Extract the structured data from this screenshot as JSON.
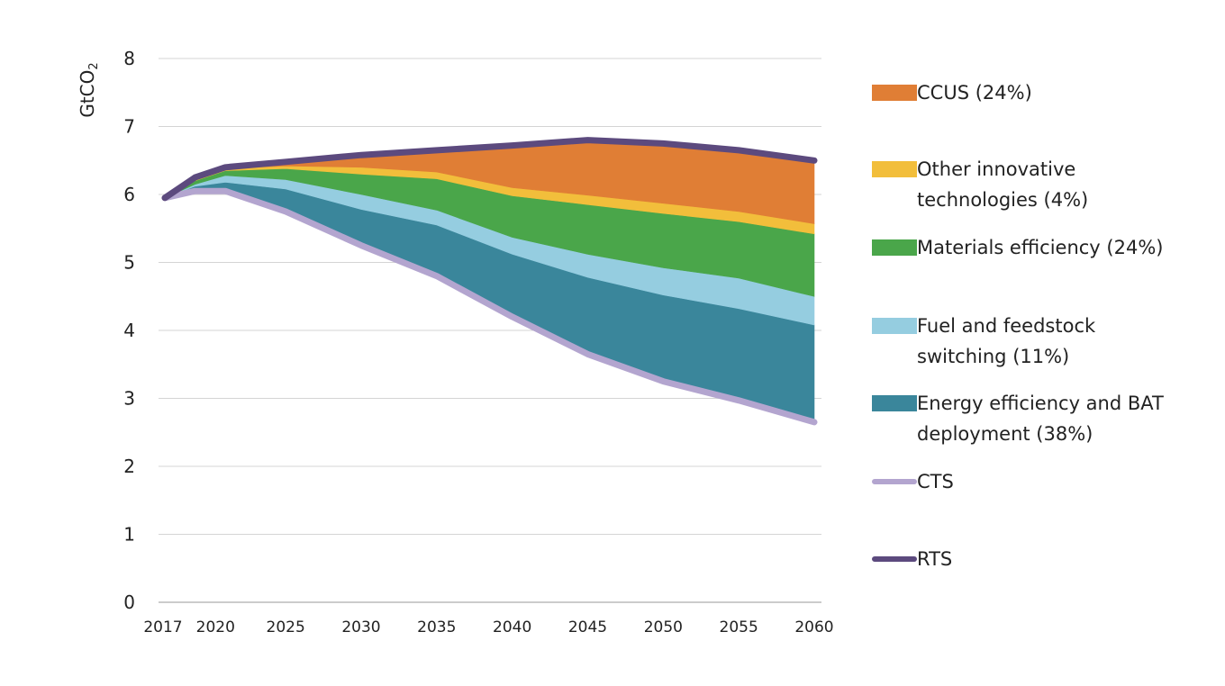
{
  "chart_data": {
    "type": "area",
    "ylabel_main": "GtCO",
    "ylabel_sub": "2",
    "ylim": [
      0,
      8
    ],
    "yticks": [
      "0",
      "1",
      "2",
      "3",
      "4",
      "5",
      "6",
      "7",
      "8"
    ],
    "xlim": [
      2017,
      2060
    ],
    "xticks": [
      "2017",
      "2020",
      "2025",
      "2030",
      "2035",
      "2040",
      "2045",
      "2050",
      "2055",
      "2060"
    ],
    "grid": true,
    "legend_position": "right",
    "x": [
      2017,
      2019,
      2021,
      2025,
      2030,
      2035,
      2040,
      2045,
      2050,
      2055,
      2060
    ],
    "cts": [
      5.95,
      6.05,
      6.05,
      5.75,
      5.25,
      4.8,
      4.2,
      3.65,
      3.25,
      2.97,
      2.65
    ],
    "rts": [
      5.95,
      6.25,
      6.4,
      6.48,
      6.58,
      6.65,
      6.72,
      6.8,
      6.75,
      6.65,
      6.5
    ],
    "wedge_boundaries": {
      "energy_efficiency_top": [
        5.95,
        6.12,
        6.18,
        6.08,
        5.78,
        5.55,
        5.12,
        4.78,
        4.52,
        4.32,
        4.08
      ],
      "fuel_switching_top": [
        5.95,
        6.15,
        6.28,
        6.22,
        6.0,
        5.77,
        5.37,
        5.12,
        4.92,
        4.77,
        4.5
      ],
      "materials_efficiency_top": [
        5.95,
        6.2,
        6.35,
        6.38,
        6.3,
        6.23,
        5.98,
        5.85,
        5.72,
        5.6,
        5.42
      ],
      "other_innovative_top": [
        5.95,
        6.22,
        6.38,
        6.42,
        6.4,
        6.33,
        6.1,
        5.99,
        5.87,
        5.75,
        5.57
      ]
    },
    "series": [
      {
        "name": "CCUS (24%)",
        "color": "#e07e35",
        "kind": "area"
      },
      {
        "name": "Other innovative technologies (4%)",
        "color": "#f2be3b",
        "kind": "area"
      },
      {
        "name": "Materials efficiency (24%)",
        "color": "#4aa64a",
        "kind": "area"
      },
      {
        "name": "Fuel and feedstock switching (11%)",
        "color": "#95cde0",
        "kind": "area"
      },
      {
        "name": "Energy efficiency and BAT deployment (38%)",
        "color": "#3a869b",
        "kind": "area"
      },
      {
        "name": "CTS",
        "color": "#b3a5cf",
        "kind": "line"
      },
      {
        "name": "RTS",
        "color": "#5c4a7e",
        "kind": "line"
      }
    ]
  }
}
